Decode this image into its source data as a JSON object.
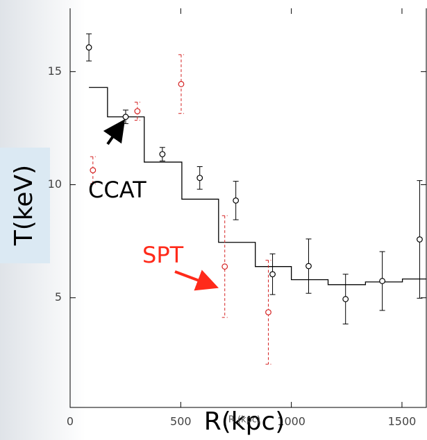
{
  "chart_data": {
    "type": "errorbar",
    "x_label": "R(kpc)",
    "x_label_small": "R (kpc)",
    "y_label": "T(keV)",
    "annotations": [
      {
        "text": "CCAT",
        "color": "#000000"
      },
      {
        "text": "SPT",
        "color": "#ff2a1a"
      }
    ],
    "xlim": [
      0,
      1610
    ],
    "ylim": [
      0.15,
      17.8
    ],
    "xticks": [
      0,
      500,
      1000,
      1500
    ],
    "yticks": [
      5,
      10,
      15
    ],
    "series": [
      {
        "color": "#000000",
        "style": "solid",
        "x": [
          85,
          251,
          417,
          586,
          749,
          915,
          1078,
          1245,
          1411,
          1580
        ],
        "values": [
          16.07,
          13.0,
          11.35,
          10.3,
          9.3,
          6.04,
          6.4,
          4.94,
          5.74,
          7.58
        ],
        "errors": [
          0.6,
          0.3,
          0.3,
          0.5,
          0.85,
          0.9,
          1.2,
          1.1,
          1.3,
          2.6
        ]
      },
      {
        "color": "#d42020",
        "style": "dashed",
        "x": [
          103,
          304,
          502,
          699,
          896
        ],
        "values": [
          10.64,
          13.25,
          14.45,
          6.38,
          4.36
        ],
        "errors": [
          0.6,
          0.4,
          1.3,
          2.25,
          2.3
        ]
      }
    ],
    "step": {
      "color": "#000000",
      "bins": [
        85,
        169,
        335,
        505,
        671,
        837,
        1000,
        1166,
        1335,
        1502,
        1611
      ],
      "values": [
        14.3,
        13.0,
        11.0,
        9.36,
        7.45,
        6.38,
        5.8,
        5.58,
        5.7,
        5.83
      ]
    }
  }
}
